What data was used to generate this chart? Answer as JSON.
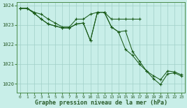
{
  "bg_color": "#c8eee8",
  "grid_color": "#a0cfc8",
  "line_color": "#1a5c1a",
  "tick_color": "#2a5c2a",
  "xlabel": "Graphe pression niveau de la mer (hPa)",
  "hours": [
    0,
    1,
    2,
    3,
    4,
    5,
    6,
    7,
    8,
    9,
    10,
    11,
    12,
    13,
    14,
    15,
    16,
    17,
    18,
    19,
    20,
    21,
    22,
    23
  ],
  "series1": [
    1023.85,
    1023.85,
    1023.65,
    1023.55,
    1023.3,
    1023.1,
    1022.9,
    1022.9,
    1023.3,
    1023.3,
    1023.55,
    1023.65,
    1023.65,
    1023.3,
    1023.3,
    1023.3,
    1023.3,
    1023.3,
    null,
    null,
    null,
    null,
    null,
    null
  ],
  "series2": [
    1023.85,
    1023.85,
    1023.6,
    1023.3,
    1023.05,
    1022.95,
    1022.85,
    1022.85,
    1023.05,
    1023.1,
    1022.2,
    1023.65,
    1023.65,
    1022.9,
    1022.65,
    1022.7,
    1021.65,
    1021.15,
    1020.65,
    1020.4,
    1020.2,
    1020.65,
    1020.6,
    1020.45
  ],
  "series3": [
    1023.85,
    1023.85,
    1023.6,
    1023.3,
    1023.05,
    1022.95,
    1022.85,
    1022.85,
    1023.05,
    1023.1,
    1022.2,
    1023.65,
    1023.65,
    1022.9,
    1022.65,
    1021.75,
    1021.45,
    1021.0,
    1020.65,
    1020.25,
    1019.95,
    1020.5,
    1020.55,
    1020.38
  ],
  "ylim": [
    1019.55,
    1024.18
  ],
  "yticks": [
    1020,
    1021,
    1022,
    1023,
    1024
  ]
}
